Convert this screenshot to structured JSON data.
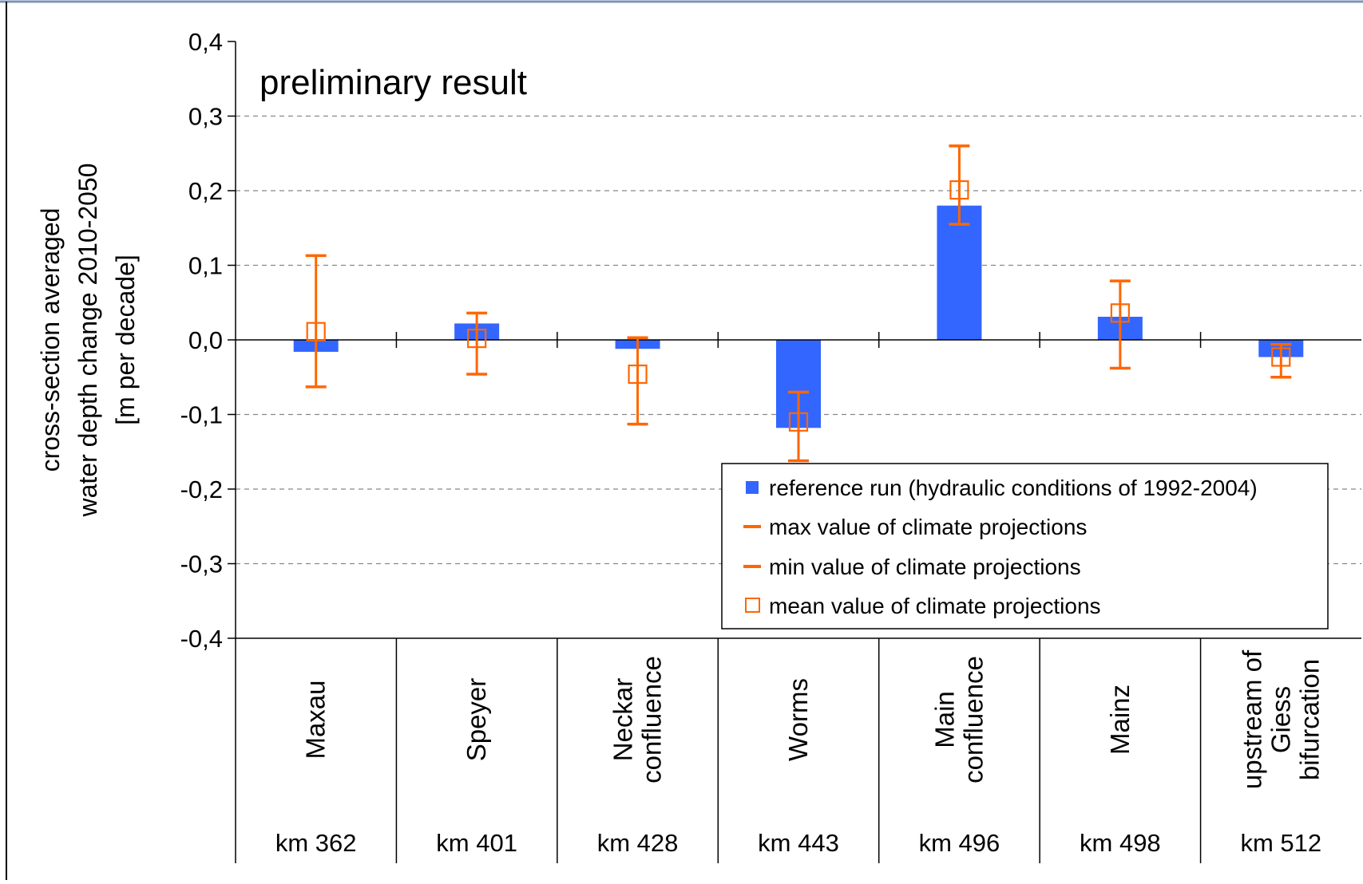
{
  "chart_data": {
    "type": "bar",
    "annotation": "preliminary result",
    "ylabel_lines": [
      "cross-section averaged",
      "water depth change 2010-2050",
      "[m per decade]"
    ],
    "ylim": [
      -0.4,
      0.4
    ],
    "yticks": [
      0.4,
      0.3,
      0.2,
      0.1,
      0.0,
      -0.1,
      -0.2,
      -0.3,
      -0.4
    ],
    "ytick_labels": [
      "0,4",
      "0,3",
      "0,2",
      "0,1",
      "0,0",
      "-0,1",
      "-0,2",
      "-0,3",
      "-0,4"
    ],
    "grid": "horizontal dashed",
    "legend_position": "bottom-right",
    "categories": [
      {
        "name_lines": [
          "Maxau"
        ],
        "km": "km 362"
      },
      {
        "name_lines": [
          "Speyer"
        ],
        "km": "km 401"
      },
      {
        "name_lines": [
          "Neckar",
          "confluence"
        ],
        "km": "km 428"
      },
      {
        "name_lines": [
          "Worms"
        ],
        "km": "km 443"
      },
      {
        "name_lines": [
          "Main",
          "confluence"
        ],
        "km": "km 496"
      },
      {
        "name_lines": [
          "Mainz"
        ],
        "km": "km 498"
      },
      {
        "name_lines": [
          "upstream of",
          "Giess",
          "bifurcation"
        ],
        "km": "km 512"
      }
    ],
    "series": [
      {
        "name": "reference run (hydraulic conditions of 1992-2004)",
        "kind": "bar",
        "color": "#3366FF",
        "values": [
          -0.016,
          0.022,
          -0.012,
          -0.118,
          0.18,
          0.031,
          -0.023
        ]
      },
      {
        "name": "max value of climate projections",
        "kind": "error-max",
        "color": "#FF6600",
        "values": [
          0.113,
          0.036,
          0.003,
          -0.07,
          0.26,
          0.079,
          -0.006
        ]
      },
      {
        "name": "min value of climate projections",
        "kind": "error-min",
        "color": "#FF6600",
        "values": [
          -0.063,
          -0.046,
          -0.113,
          -0.162,
          0.155,
          -0.038,
          -0.05
        ]
      },
      {
        "name": "mean value of climate projections",
        "kind": "marker",
        "color": "#FF6600",
        "values": [
          0.011,
          0.002,
          -0.046,
          -0.11,
          0.201,
          0.036,
          -0.023
        ]
      }
    ]
  }
}
